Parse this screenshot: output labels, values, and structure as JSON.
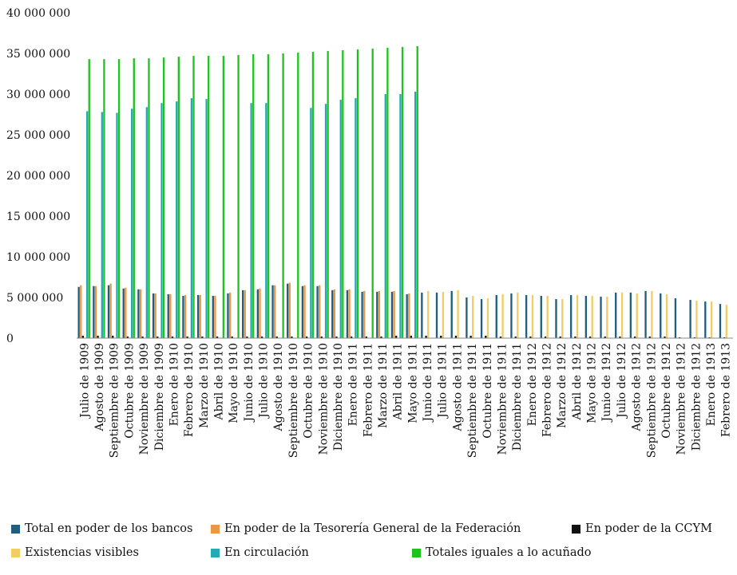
{
  "chart_data": {
    "type": "bar",
    "title": "",
    "xlabel": "",
    "ylabel": "",
    "ylim": [
      0,
      40000000
    ],
    "y_ticks": [
      "0",
      "5 000 000",
      "10 000 000",
      "15 000 000",
      "20 000 000",
      "25 000 000",
      "30 000 000",
      "35 000 000",
      "40 000 000"
    ],
    "grid": false,
    "legend_position": "bottom",
    "categories": [
      "Julio de 1909",
      "Agosto de 1909",
      "Septiembre de 1909",
      "Octubre de 1909",
      "Noviembre de 1909",
      "Diciembre de 1909",
      "Enero de 1910",
      "Febrero de 1910",
      "Marzo de 1910",
      "Abril de 1910",
      "Mayo de 1910",
      "Junio de 1910",
      "Julio de 1910",
      "Agosto de 1910",
      "Septiembre de 1910",
      "Octubre de 1910",
      "Noviembre de 1910",
      "Diciembre de 1910",
      "Enero de 1911",
      "Febrero de 1911",
      "Marzo de 1911",
      "Abril de 1911",
      "Mayo de 1911",
      "Junio de 1911",
      "Julio de 1911",
      "Agosto de 1911",
      "Septiembre de 1911",
      "Octubre de 1911",
      "Noviembre de 1911",
      "Diciembre de 1911",
      "Enero de 1912",
      "Febrero de 1912",
      "Marzo de 1912",
      "Abril de 1912",
      "Mayo de 1912",
      "Junio de 1912",
      "Julio de 1912",
      "Agosto de 1912",
      "Septiembre de 1912",
      "Octubre de 1912",
      "Noviembre de 1912",
      "Diciembre de 1912",
      "Enero de 1913",
      "Febrero de 1913"
    ],
    "series": [
      {
        "name": "Total en poder de los bancos",
        "color": "#1d5f7d",
        "values": [
          6300000,
          6400000,
          6500000,
          6100000,
          6000000,
          5500000,
          5400000,
          5200000,
          5300000,
          5200000,
          5500000,
          5900000,
          6000000,
          6500000,
          6700000,
          6400000,
          6400000,
          5900000,
          5900000,
          5700000,
          5700000,
          5700000,
          5400000,
          5600000,
          5600000,
          5800000,
          5000000,
          4800000,
          5300000,
          5500000,
          5300000,
          5200000,
          4800000,
          5300000,
          5200000,
          5100000,
          5600000,
          5600000,
          5800000,
          5500000,
          4900000,
          4700000,
          4500000,
          4200000
        ]
      },
      {
        "name": "En poder de la Tesorería General de la Federación",
        "color": "#ef9646",
        "values": [
          6500000,
          6400000,
          6700000,
          6200000,
          6000000,
          5500000,
          5400000,
          5300000,
          5300000,
          5200000,
          5600000,
          5900000,
          6100000,
          6500000,
          6800000,
          6500000,
          6500000,
          6000000,
          6000000,
          5800000,
          5800000,
          5800000,
          5500000,
          0,
          0,
          0,
          0,
          0,
          0,
          0,
          0,
          0,
          0,
          0,
          0,
          0,
          0,
          0,
          0,
          0,
          0,
          0,
          0,
          0
        ]
      },
      {
        "name": "En poder de la CCYM",
        "color": "#111111",
        "values": [
          300000,
          300000,
          300000,
          200000,
          200000,
          200000,
          200000,
          200000,
          200000,
          200000,
          200000,
          200000,
          200000,
          200000,
          200000,
          200000,
          200000,
          200000,
          200000,
          200000,
          200000,
          300000,
          300000,
          300000,
          300000,
          300000,
          300000,
          300000,
          200000,
          200000,
          200000,
          200000,
          200000,
          200000,
          200000,
          200000,
          200000,
          200000,
          200000,
          200000,
          100000,
          100000,
          100000,
          100000
        ]
      },
      {
        "name": "Existencias visibles",
        "color": "#f2cd63",
        "values": [
          0,
          0,
          0,
          0,
          0,
          0,
          0,
          0,
          0,
          0,
          0,
          0,
          0,
          0,
          0,
          0,
          0,
          0,
          0,
          0,
          0,
          0,
          0,
          5800000,
          5700000,
          5900000,
          5200000,
          4900000,
          5400000,
          5600000,
          5300000,
          5200000,
          4800000,
          5300000,
          5200000,
          5100000,
          5600000,
          5500000,
          5800000,
          5400000,
          0,
          4600000,
          4500000,
          4100000
        ]
      },
      {
        "name": "En circulación",
        "color": "#24a9b5",
        "values": [
          27900000,
          27800000,
          27700000,
          28200000,
          28400000,
          28900000,
          29100000,
          29500000,
          29400000,
          0,
          0,
          28900000,
          28900000,
          0,
          0,
          28300000,
          28800000,
          29300000,
          29500000,
          0,
          30000000,
          30000000,
          30300000,
          0,
          0,
          0,
          0,
          0,
          0,
          0,
          0,
          0,
          0,
          0,
          0,
          0,
          0,
          0,
          0,
          0,
          0,
          0,
          0,
          0
        ]
      },
      {
        "name": "Totales iguales a lo acuñado",
        "color": "#1dc41d",
        "values": [
          34300000,
          34300000,
          34300000,
          34400000,
          34400000,
          34500000,
          34600000,
          34700000,
          34700000,
          34700000,
          34800000,
          34900000,
          34900000,
          35000000,
          35100000,
          35200000,
          35300000,
          35400000,
          35500000,
          35600000,
          35700000,
          35800000,
          35900000,
          0,
          0,
          0,
          0,
          0,
          0,
          0,
          0,
          0,
          0,
          0,
          0,
          0,
          0,
          0,
          0,
          0,
          0,
          0,
          0,
          0
        ]
      }
    ]
  }
}
